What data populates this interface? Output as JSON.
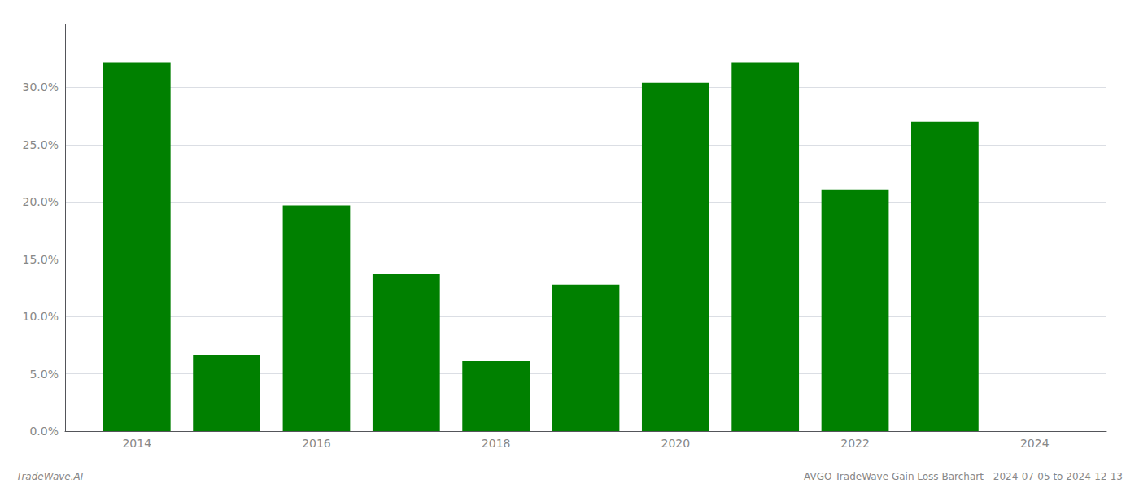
{
  "chart_data": {
    "type": "bar",
    "x": [
      2014,
      2015,
      2016,
      2017,
      2018,
      2019,
      2020,
      2021,
      2022,
      2023,
      2024
    ],
    "values": [
      0.322,
      0.066,
      0.197,
      0.137,
      0.061,
      0.128,
      0.304,
      0.322,
      0.211,
      0.27,
      null
    ],
    "color": "#008000",
    "xlim": [
      2013.2,
      2024.8
    ],
    "xticks": [
      2014,
      2016,
      2018,
      2020,
      2022,
      2024
    ],
    "ylim": [
      0,
      0.355
    ],
    "yticks": [
      {
        "value": 0.0,
        "label": "0.0%"
      },
      {
        "value": 0.05,
        "label": "5.0%"
      },
      {
        "value": 0.1,
        "label": "10.0%"
      },
      {
        "value": 0.15,
        "label": "15.0%"
      },
      {
        "value": 0.2,
        "label": "20.0%"
      },
      {
        "value": 0.25,
        "label": "25.0%"
      },
      {
        "value": 0.3,
        "label": "30.0%"
      }
    ],
    "grid": true,
    "annotations": [
      "TradeWave.AI",
      "AVGO TradeWave Gain Loss Barchart - 2024-07-05 to 2024-12-13"
    ]
  }
}
